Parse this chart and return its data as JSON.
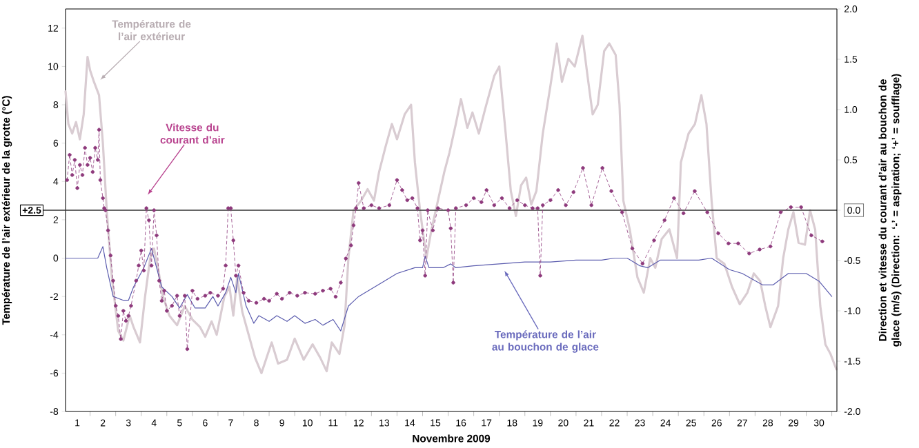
{
  "chart_data": {
    "type": "line",
    "xlabel": "Novembre 2009",
    "ylabel": "Température de l’air extérieur de la grotte (°C)",
    "y2label": "Direction et vitesse du courant d’air au bouchon de glace (m/s) (Direction: ‘-’ = aspiration; ‘+’ = soufflage)",
    "xlim": [
      0.54,
      30.7
    ],
    "xticks": [
      1,
      {
        "value": 1.5,
        "label": null
      },
      2,
      {
        "value": 2.5,
        "label": null
      },
      3,
      {
        "value": 3.5,
        "label": null
      },
      4,
      {
        "value": 4.5,
        "label": null
      },
      5,
      {
        "value": 5.5,
        "label": null
      },
      6,
      {
        "value": 6.5,
        "label": null
      },
      7,
      {
        "value": 7.5,
        "label": null
      },
      8,
      {
        "value": 8.5,
        "label": null
      },
      9,
      {
        "value": 9.5,
        "label": null
      },
      10,
      {
        "value": 10.5,
        "label": null
      },
      11,
      {
        "value": 11.5,
        "label": null
      },
      12,
      {
        "value": 12.5,
        "label": null
      },
      13,
      {
        "value": 13.5,
        "label": null
      },
      14,
      {
        "value": 14.5,
        "label": null
      },
      15,
      {
        "value": 15.5,
        "label": null
      },
      16,
      {
        "value": 16.5,
        "label": null
      },
      17,
      {
        "value": 17.5,
        "label": null
      },
      18,
      {
        "value": 18.5,
        "label": null
      },
      19,
      {
        "value": 19.5,
        "label": null
      },
      20,
      {
        "value": 20.5,
        "label": null
      },
      21,
      {
        "value": 21.5,
        "label": null
      },
      22,
      {
        "value": 22.5,
        "label": null
      },
      23,
      {
        "value": 23.5,
        "label": null
      },
      24,
      {
        "value": 24.5,
        "label": null
      },
      25,
      {
        "value": 25.5,
        "label": null
      },
      26,
      {
        "value": 26.5,
        "label": null
      },
      27,
      {
        "value": 27.5,
        "label": null
      },
      28,
      {
        "value": 28.5,
        "label": null
      },
      29,
      {
        "value": 29.5,
        "label": null
      },
      30,
      {
        "value": 30.5,
        "label": null
      }
    ],
    "ylim": [
      -8,
      13
    ],
    "yticks": [
      -8,
      -6,
      -4,
      -2,
      0,
      2,
      4,
      6,
      8,
      10,
      12
    ],
    "y2lim": [
      -2,
      2
    ],
    "y2ticks": [
      {
        "value": -2,
        "label": "-2.0"
      },
      {
        "value": -1.5,
        "label": "-1.5"
      },
      {
        "value": -1,
        "label": "-1.0"
      },
      {
        "value": -0.5,
        "label": "-0.5"
      },
      {
        "value": 0,
        "label": "0.0"
      },
      {
        "value": 0.5,
        "label": "0.5"
      },
      {
        "value": 1,
        "label": "1.0"
      },
      {
        "value": 1.5,
        "label": "1.5"
      },
      {
        "value": 2,
        "label": "2.0"
      }
    ],
    "ref_lines": [
      {
        "axis": "y",
        "value": 2.5,
        "label": "+2.5",
        "color": "#333333"
      }
    ],
    "annotations": [
      "Température de l’air extérieur",
      "Vitesse du courant d’air",
      "Température de l’air au bouchon de glace"
    ],
    "series": [
      {
        "color": "#d9ccd2",
        "x": [
          0.54,
          0.65,
          0.8,
          0.95,
          1.1,
          1.25,
          1.4,
          1.5,
          1.65,
          1.85,
          2.0,
          2.15,
          2.35,
          2.6,
          2.8,
          3.05,
          3.2,
          3.45,
          3.65,
          3.85,
          4.0,
          4.15,
          4.35,
          4.6,
          4.9,
          5.2,
          5.5,
          5.8,
          6.0,
          6.25,
          6.45,
          6.75,
          6.95,
          7.1,
          7.25,
          7.45,
          7.7,
          7.95,
          8.2,
          8.45,
          8.6,
          8.85,
          9.2,
          9.5,
          9.85,
          10.2,
          10.5,
          10.75,
          10.95,
          11.25,
          11.45,
          11.6,
          11.8,
          12.1,
          12.35,
          12.6,
          12.8,
          13.05,
          13.3,
          13.5,
          13.8,
          14.05,
          14.2,
          14.4,
          14.65,
          14.85,
          15.1,
          15.35,
          15.55,
          15.8,
          16.0,
          16.25,
          16.45,
          16.7,
          16.95,
          17.3,
          17.5,
          17.75,
          17.95,
          18.15,
          18.35,
          18.55,
          18.75,
          18.95,
          19.2,
          19.5,
          19.75,
          19.95,
          20.2,
          20.45,
          20.75,
          20.95,
          21.15,
          21.35,
          21.6,
          21.8,
          22.05,
          22.2,
          22.35,
          22.6,
          22.9,
          23.15,
          23.4,
          23.6,
          23.85,
          24.15,
          24.45,
          24.6,
          24.9,
          25.15,
          25.4,
          25.6,
          25.8,
          26.0,
          26.3,
          26.6,
          26.9,
          27.2,
          27.45,
          27.7,
          27.9,
          28.1,
          28.4,
          28.6,
          28.8,
          29.0,
          29.2,
          29.45,
          29.65,
          29.85,
          30.05,
          30.25,
          30.45,
          30.68
        ],
        "values": [
          8.7,
          7.0,
          6.5,
          7.1,
          6.2,
          7.5,
          10.5,
          9.8,
          9.2,
          8.5,
          6.0,
          2.5,
          -1.0,
          -3.8,
          -4.3,
          -3.0,
          -3.6,
          -4.4,
          -2.0,
          0.0,
          0.5,
          -0.5,
          -2.0,
          -3.0,
          -3.5,
          -2.5,
          -3.2,
          -3.6,
          -4.1,
          -3.3,
          -4.0,
          -2.0,
          -1.5,
          -3.0,
          -1.0,
          -2.8,
          -4.0,
          -5.2,
          -6.0,
          -5.0,
          -4.4,
          -5.5,
          -5.3,
          -4.2,
          -5.3,
          -4.5,
          -5.2,
          -5.9,
          -4.4,
          -5.0,
          -3.5,
          0.0,
          2.5,
          3.0,
          3.6,
          3.0,
          4.5,
          5.8,
          7.0,
          6.2,
          7.5,
          8.0,
          5.0,
          2.5,
          0.0,
          1.5,
          3.0,
          4.5,
          5.5,
          7.0,
          8.3,
          6.8,
          7.6,
          6.5,
          7.8,
          9.5,
          10.0,
          6.5,
          3.5,
          2.2,
          3.8,
          4.2,
          2.8,
          3.5,
          6.5,
          9.0,
          11.2,
          9.2,
          10.4,
          10.0,
          11.6,
          9.5,
          7.5,
          8.0,
          10.8,
          11.2,
          10.6,
          8.0,
          3.0,
          1.5,
          -1.0,
          -1.8,
          0.0,
          -0.5,
          1.0,
          1.5,
          0.0,
          5.0,
          6.5,
          7.0,
          8.5,
          7.0,
          3.0,
          0.0,
          -0.3,
          -1.5,
          -2.4,
          -1.8,
          -0.8,
          -1.2,
          -2.5,
          -3.6,
          -2.5,
          0.0,
          1.5,
          2.4,
          0.8,
          0.7,
          2.5,
          1.5,
          -2.5,
          -4.5,
          -5.0,
          -5.8
        ]
      },
      {
        "color": "#5b5cae",
        "x": [
          0.54,
          1.8,
          2.0,
          2.15,
          2.4,
          2.8,
          3.0,
          3.2,
          3.6,
          3.9,
          4.1,
          4.3,
          4.7,
          5.0,
          5.3,
          5.6,
          6.0,
          6.3,
          6.5,
          6.8,
          7.0,
          7.2,
          7.3,
          7.6,
          7.9,
          8.1,
          8.5,
          8.8,
          9.2,
          9.5,
          9.9,
          10.3,
          10.6,
          11.0,
          11.3,
          11.6,
          12.0,
          12.5,
          13.0,
          13.5,
          14.2,
          14.5,
          14.6,
          14.75,
          15.3,
          15.6,
          15.8,
          16.5,
          17.5,
          18.5,
          19.5,
          20.5,
          21.5,
          22.0,
          22.5,
          23.0,
          23.3,
          23.8,
          24.5,
          25.3,
          25.8,
          26.5,
          27.0,
          27.8,
          28.2,
          28.8,
          29.5,
          30.0,
          30.5
        ],
        "values": [
          0.0,
          0.0,
          0.6,
          -0.5,
          -2.0,
          -2.2,
          -2.2,
          -1.5,
          -0.5,
          0.5,
          -0.5,
          -1.5,
          -2.0,
          -2.6,
          -1.9,
          -2.6,
          -2.6,
          -2.0,
          -2.5,
          -1.8,
          -1.0,
          -1.8,
          -0.8,
          -2.5,
          -3.4,
          -3.0,
          -3.3,
          -3.0,
          -3.3,
          -3.0,
          -3.4,
          -3.2,
          -3.5,
          -3.2,
          -3.8,
          -2.5,
          -2.0,
          -1.6,
          -1.2,
          -0.8,
          -0.5,
          -0.5,
          0.1,
          -0.5,
          -0.5,
          -0.3,
          -0.5,
          -0.4,
          -0.3,
          -0.2,
          -0.2,
          -0.1,
          -0.1,
          0.0,
          0.0,
          -0.4,
          -0.5,
          -0.1,
          -0.1,
          -0.1,
          0.0,
          -0.6,
          -0.8,
          -1.4,
          -1.4,
          -0.8,
          -0.8,
          -1.2,
          -2.0
        ]
      },
      {
        "color": "#8e3a7c",
        "axis": "y2",
        "marker": "circle",
        "line_style": "dashed",
        "x": [
          0.6,
          0.7,
          0.8,
          0.9,
          1.0,
          1.1,
          1.2,
          1.3,
          1.4,
          1.5,
          1.6,
          1.7,
          1.8,
          1.85,
          1.9,
          2.0,
          2.05,
          2.1,
          2.2,
          2.3,
          2.4,
          2.5,
          2.6,
          2.7,
          2.8,
          2.9,
          3.0,
          3.1,
          3.3,
          3.4,
          3.5,
          3.6,
          3.7,
          3.8,
          3.9,
          4.0,
          4.1,
          4.2,
          4.3,
          4.4,
          4.5,
          4.7,
          4.9,
          5.0,
          5.2,
          5.3,
          5.5,
          5.7,
          6.0,
          6.2,
          6.5,
          6.7,
          6.8,
          6.9,
          7.0,
          7.1,
          7.2,
          7.3,
          7.5,
          7.7,
          8.0,
          8.3,
          8.5,
          8.8,
          9.0,
          9.3,
          9.6,
          9.9,
          10.3,
          10.6,
          10.9,
          11.1,
          11.3,
          11.5,
          11.7,
          11.8,
          11.9,
          12.0,
          12.2,
          12.5,
          12.8,
          13.2,
          13.5,
          13.7,
          13.9,
          14.1,
          14.3,
          14.4,
          14.5,
          14.6,
          14.7,
          14.9,
          15.1,
          15.5,
          15.6,
          15.7,
          15.8,
          16.2,
          16.5,
          16.8,
          17.0,
          17.3,
          17.6,
          17.9,
          18.2,
          18.5,
          18.8,
          19.0,
          19.1,
          19.2,
          19.5,
          19.8,
          20.1,
          20.4,
          20.77,
          21.1,
          21.53,
          21.88,
          22.3,
          22.7,
          23.1,
          23.55,
          23.96,
          24.33,
          24.7,
          25.14,
          25.63,
          26.06,
          26.46,
          26.84,
          27.27,
          27.68,
          28.1,
          28.5,
          28.9,
          29.3,
          29.7,
          30.13
        ],
        "values": [
          0.3,
          0.55,
          0.35,
          0.5,
          0.22,
          0.45,
          0.35,
          0.62,
          0.45,
          0.52,
          0.38,
          0.62,
          0.5,
          0.8,
          0.3,
          0.12,
          0.02,
          0.0,
          -0.2,
          -0.45,
          -0.7,
          -0.95,
          -1.05,
          -1.28,
          -1.0,
          -1.1,
          -1.05,
          -0.95,
          -0.7,
          -0.55,
          -0.4,
          -0.6,
          0.02,
          -0.1,
          -0.55,
          0.0,
          -0.25,
          -0.7,
          -0.9,
          -0.8,
          -1.0,
          -0.95,
          -0.85,
          -1.05,
          -0.85,
          -1.38,
          -0.8,
          -0.88,
          -0.85,
          -0.82,
          -0.85,
          -0.78,
          -0.55,
          0.02,
          0.02,
          -0.3,
          -0.65,
          -0.55,
          -0.82,
          -0.9,
          -0.92,
          -0.88,
          -0.9,
          -0.83,
          -0.88,
          -0.82,
          -0.85,
          -0.82,
          -0.83,
          -0.8,
          -0.78,
          -0.86,
          -0.72,
          -0.48,
          -0.35,
          -0.15,
          0.02,
          0.27,
          0.02,
          0.05,
          0.02,
          0.05,
          0.3,
          0.2,
          0.1,
          0.12,
          0.02,
          -0.3,
          -0.2,
          -0.65,
          0.0,
          -0.2,
          0.02,
          0.0,
          -0.18,
          -0.72,
          0.02,
          0.05,
          0.12,
          0.08,
          0.2,
          0.05,
          0.12,
          0.02,
          0.1,
          0.05,
          0.02,
          0.02,
          -0.65,
          0.05,
          0.1,
          0.2,
          0.05,
          0.18,
          0.42,
          0.05,
          0.42,
          0.19,
          -0.02,
          -0.38,
          -0.53,
          -0.3,
          -0.1,
          0.12,
          -0.03,
          0.19,
          -0.02,
          -0.23,
          -0.33,
          -0.33,
          -0.43,
          -0.39,
          -0.36,
          -0.02,
          0.03,
          0.03,
          -0.25,
          -0.31
        ]
      }
    ]
  }
}
